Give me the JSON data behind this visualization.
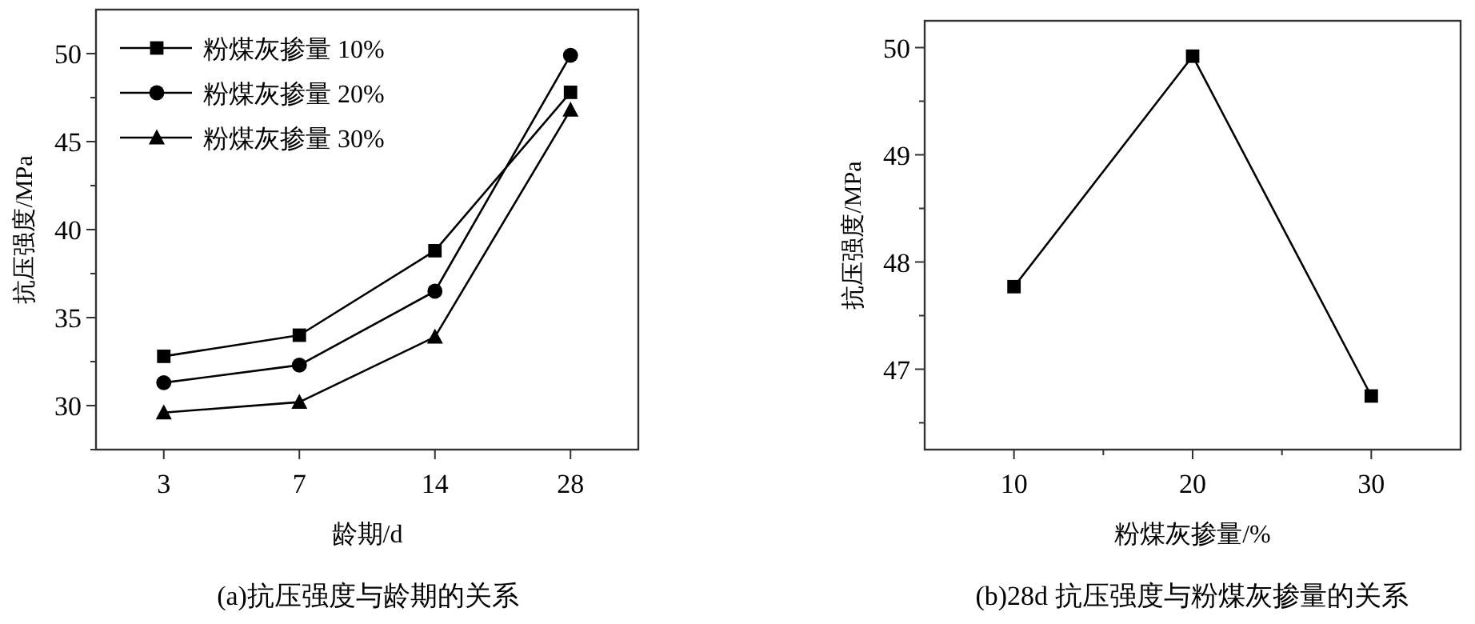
{
  "chart_data": [
    {
      "type": "line",
      "categories": [
        "3",
        "7",
        "14",
        "28"
      ],
      "xlabel": "龄期/d",
      "ylabel": "抗压强度/MPa",
      "ylim": [
        27.5,
        52.5
      ],
      "yticks": [
        {
          "value": 27.5,
          "label": null
        },
        30,
        {
          "value": 32.5,
          "label": null
        },
        35,
        {
          "value": 37.5,
          "label": null
        },
        40,
        {
          "value": 42.5,
          "label": null
        },
        45,
        {
          "value": 47.5,
          "label": null
        },
        50
      ],
      "legend": "top left",
      "annotations": [
        "(a)抗压强度与龄期的关系"
      ],
      "series": [
        {
          "name": "粉煤灰掺量 10%",
          "color": "#000000",
          "marker": "square",
          "values": [
            32.8,
            34.0,
            38.8,
            47.8
          ]
        },
        {
          "name": "粉煤灰掺量 20%",
          "color": "#000000",
          "marker": "circle",
          "values": [
            31.3,
            32.3,
            36.5,
            49.9
          ]
        },
        {
          "name": "粉煤灰掺量 30%",
          "color": "#000000",
          "marker": "triangle",
          "values": [
            29.6,
            30.2,
            33.9,
            46.8
          ]
        }
      ]
    },
    {
      "type": "line",
      "x": [
        10,
        20,
        30
      ],
      "xlim": [
        5,
        35
      ],
      "xticks": [
        10,
        {
          "value": 15,
          "label": null
        },
        20,
        {
          "value": 25,
          "label": null
        },
        30
      ],
      "ylim": [
        46.25,
        50.25
      ],
      "yticks": [
        {
          "value": 46.5,
          "label": null
        },
        47,
        {
          "value": 47.5,
          "label": null
        },
        48,
        {
          "value": 48.5,
          "label": null
        },
        49,
        {
          "value": 49.5,
          "label": null
        },
        50
      ],
      "xlabel": "粉煤灰掺量/%",
      "ylabel": "抗压强度/MPa",
      "marker": "square",
      "annotations": [
        "(b)28d 抗压强度与粉煤灰掺量的关系"
      ],
      "series": [
        {
          "color": "#000000",
          "values": [
            47.77,
            49.92,
            46.75
          ]
        }
      ]
    }
  ]
}
